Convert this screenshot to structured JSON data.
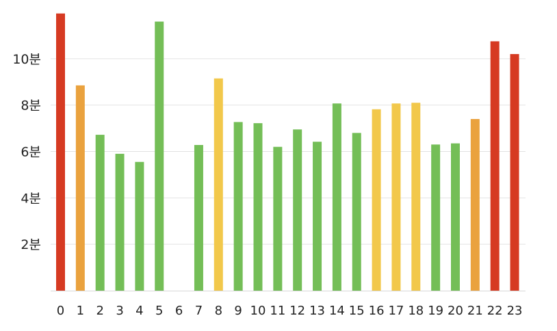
{
  "chart_data": {
    "type": "bar",
    "title": "",
    "xlabel": "",
    "ylabel": "",
    "categories": [
      "0",
      "1",
      "2",
      "3",
      "4",
      "5",
      "6",
      "7",
      "8",
      "9",
      "10",
      "11",
      "12",
      "13",
      "14",
      "15",
      "16",
      "17",
      "18",
      "19",
      "20",
      "21",
      "22",
      "23"
    ],
    "values": [
      11.95,
      8.85,
      6.72,
      5.9,
      5.55,
      11.6,
      0,
      6.28,
      9.15,
      7.27,
      7.22,
      6.2,
      6.95,
      6.42,
      8.07,
      6.8,
      7.82,
      8.07,
      8.1,
      6.3,
      6.35,
      7.4,
      10.75,
      10.2
    ],
    "colors": [
      "#d63a22",
      "#eaa23e",
      "#74be57",
      "#74be57",
      "#74be57",
      "#74be57",
      "#74be57",
      "#74be57",
      "#f2c84b",
      "#74be57",
      "#74be57",
      "#74be57",
      "#74be57",
      "#74be57",
      "#74be57",
      "#74be57",
      "#f2c84b",
      "#f2c84b",
      "#f2c84b",
      "#74be57",
      "#74be57",
      "#eaa23e",
      "#d63a22",
      "#d63a22"
    ],
    "ylim": [
      0,
      12
    ],
    "yticks": [
      2,
      4,
      6,
      8,
      10
    ],
    "ytick_labels": [
      "2분",
      "4분",
      "6분",
      "8분",
      "10분"
    ],
    "grid": true,
    "legend": "none",
    "grid_color": "#e2e2e2",
    "baseline_color": "#d6d6d6"
  }
}
